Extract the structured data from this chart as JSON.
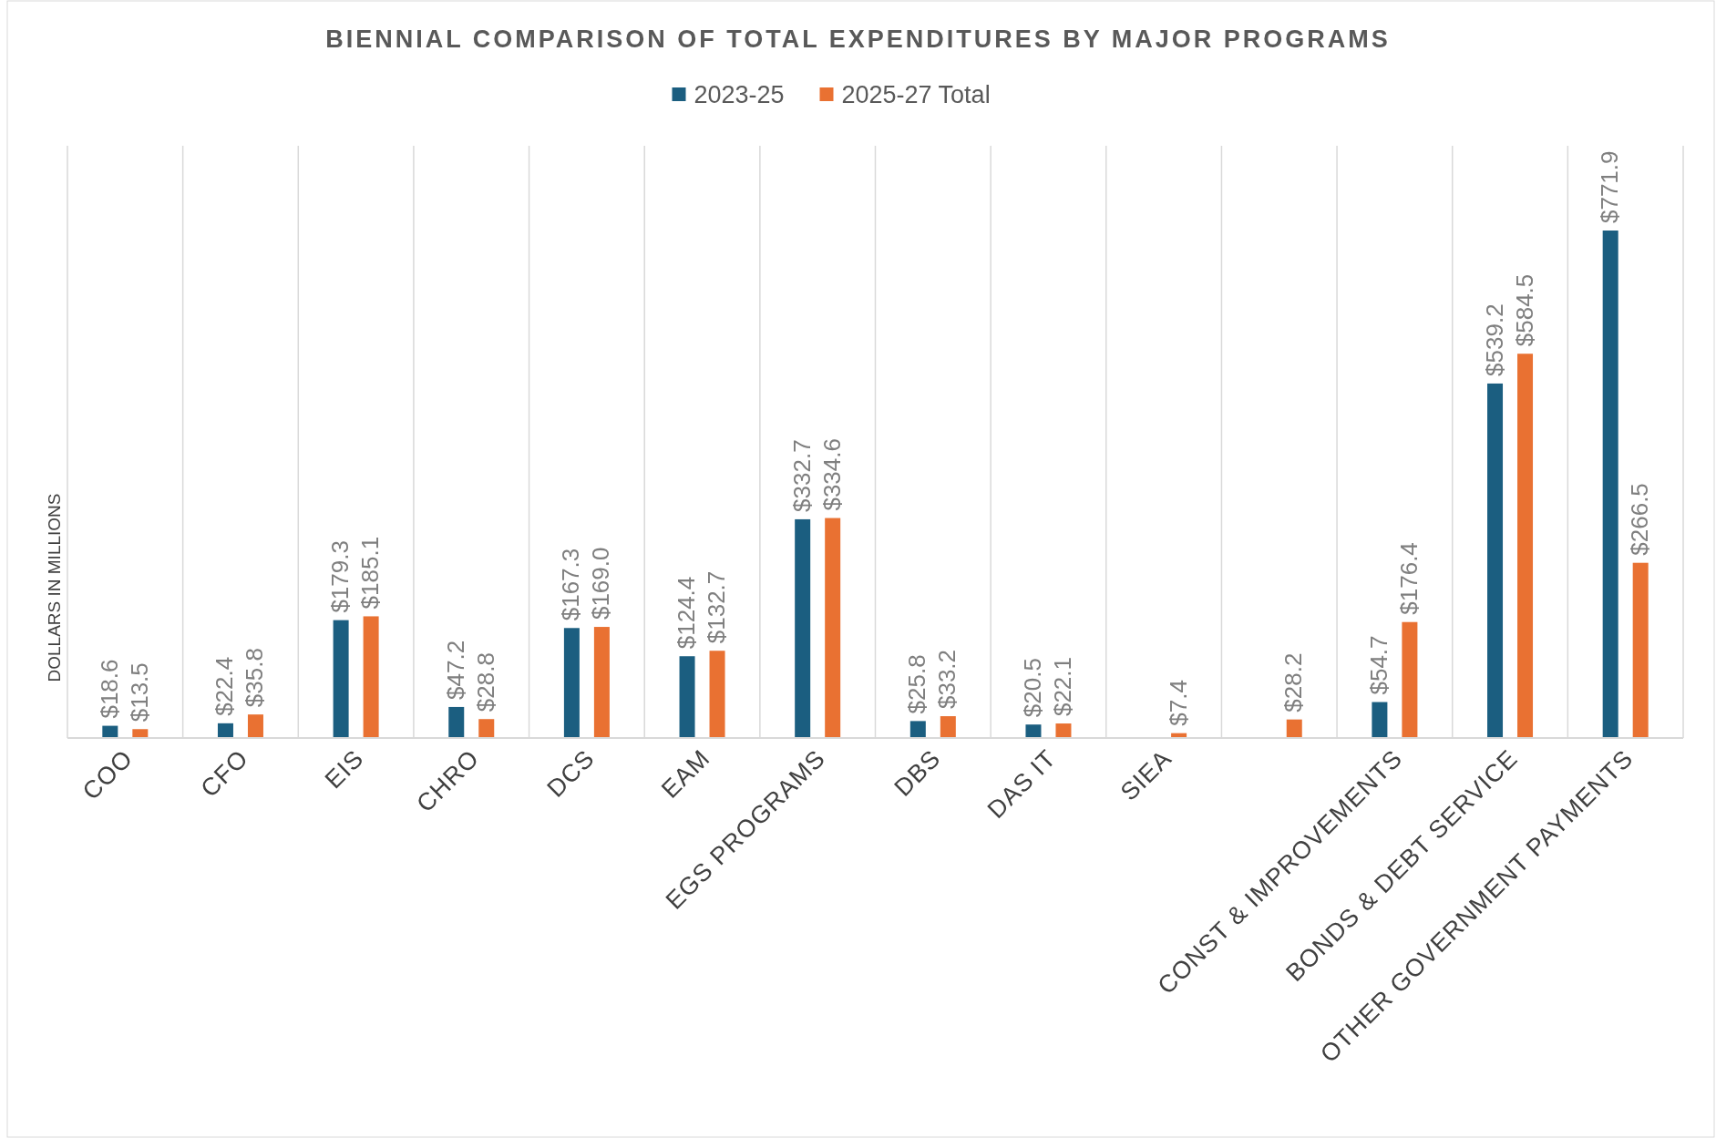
{
  "chart_data": {
    "type": "bar",
    "title": "BIENNIAL COMPARISON OF TOTAL EXPENDITURES BY MAJOR PROGRAMS",
    "ylabel": "DOLLARS IN MILLIONS",
    "grid": "x",
    "legend": "top",
    "categories": [
      "COO",
      "CFO",
      "EIS",
      "CHRO",
      "DCS",
      "EAM",
      "EGS PROGRAMS",
      "DBS",
      "DAS IT",
      "SIEA",
      null,
      "CONST & IMPROVEMENTS",
      "BONDS & DEBT SERVICE",
      "OTHER GOVERNMENT PAYMENTS"
    ],
    "series": [
      {
        "name": "2023-25",
        "color": "#1b5e80",
        "values": [
          18.6,
          22.4,
          179.3,
          47.2,
          167.3,
          124.4,
          332.7,
          25.8,
          20.5,
          null,
          null,
          54.7,
          539.2,
          771.9
        ],
        "value_labels": [
          "$18.6",
          "$22.4",
          "$179.3",
          "$47.2",
          "$167.3",
          "$124.4",
          "$332.7",
          "$25.8",
          "$20.5",
          null,
          null,
          "$54.7",
          "$539.2",
          "$771.9"
        ]
      },
      {
        "name": "2025-27 Total",
        "color": "#e97132",
        "values": [
          13.5,
          35.8,
          185.1,
          28.8,
          169.0,
          132.7,
          334.6,
          33.2,
          22.1,
          7.4,
          28.2,
          176.4,
          584.5,
          266.5
        ],
        "value_labels": [
          "$13.5",
          "$35.8",
          "$185.1",
          "$28.8",
          "$169.0",
          "$132.7",
          "$334.6",
          "$33.2",
          "$22.1",
          "$7.4",
          "$28.2",
          "$176.4",
          "$584.5",
          "$266.5"
        ]
      }
    ]
  }
}
